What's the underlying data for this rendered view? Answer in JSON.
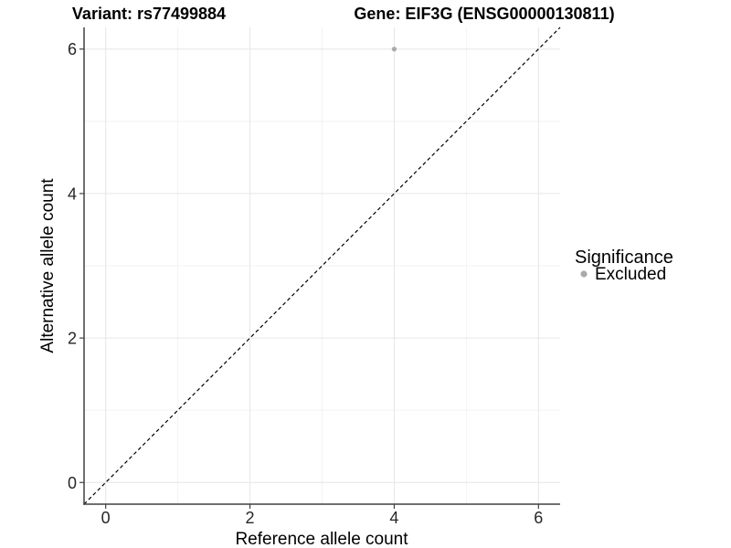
{
  "header": {
    "variant_title": "Variant: rs77499884",
    "gene_title": "Gene: EIF3G (ENSG00000130811)"
  },
  "axes": {
    "x_label": "Reference allele count",
    "y_label": "Alternative allele count"
  },
  "legend": {
    "title": "Significance",
    "items": [
      {
        "label": "Excluded",
        "color": "#aaaaaa"
      }
    ]
  },
  "colors": {
    "background": "#ffffff",
    "grid_major": "#e6e6e6",
    "grid_minor": "#f2f2f2",
    "axis_line": "#404040",
    "tick_text": "#262626",
    "reference_line": "#000000",
    "point": "#aaaaaa"
  },
  "chart_data": {
    "type": "scatter",
    "title_left": "Variant: rs77499884",
    "title_right": "Gene: EIF3G (ENSG00000130811)",
    "xlabel": "Reference allele count",
    "ylabel": "Alternative allele count",
    "xlim": [
      -0.3,
      6.3
    ],
    "ylim": [
      -0.3,
      6.3
    ],
    "x_ticks": [
      0,
      2,
      4,
      6
    ],
    "y_ticks": [
      0,
      2,
      4,
      6
    ],
    "x_minor_ticks": [
      1,
      3,
      5
    ],
    "y_minor_ticks": [
      1,
      3,
      5
    ],
    "grid": "on",
    "legend_position": "right",
    "series": [
      {
        "name": "Excluded",
        "color": "#aaaaaa",
        "point_radius": 2.6,
        "points": [
          [
            4,
            6
          ]
        ]
      }
    ],
    "reference_line": {
      "kind": "identity",
      "from": [
        -0.3,
        -0.3
      ],
      "to": [
        6.3,
        6.3
      ],
      "style": "dashed",
      "color": "#000000"
    }
  }
}
